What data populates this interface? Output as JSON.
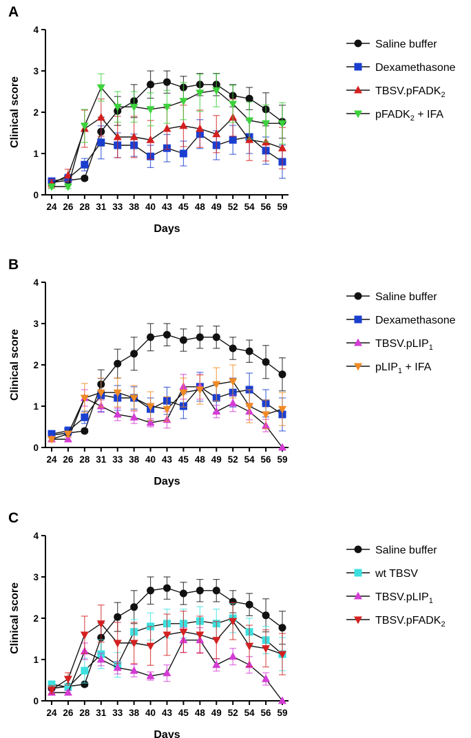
{
  "chart_data": [
    {
      "panel": "A",
      "type": "line",
      "xlabel": "Days",
      "ylabel": "Clinical score",
      "ylim": [
        0,
        4
      ],
      "yticks": [
        0,
        1,
        2,
        3,
        4
      ],
      "categories": [
        "24",
        "26",
        "28",
        "31",
        "33",
        "38",
        "40",
        "43",
        "45",
        "48",
        "49",
        "52",
        "54",
        "56",
        "59"
      ],
      "grid": false,
      "legend_position": "right",
      "series": [
        {
          "name": "Saline buffer",
          "sub": "",
          "suffix": "",
          "color": "#111111",
          "marker": "circle",
          "values": [
            0.3,
            0.35,
            0.4,
            1.53,
            2.03,
            2.27,
            2.67,
            2.73,
            2.6,
            2.67,
            2.67,
            2.4,
            2.33,
            2.07,
            1.77
          ],
          "errors": [
            0.05,
            0.05,
            0.05,
            0.35,
            0.35,
            0.4,
            0.33,
            0.27,
            0.27,
            0.27,
            0.27,
            0.27,
            0.27,
            0.4,
            0.4
          ]
        },
        {
          "name": "Dexamethasone",
          "sub": "",
          "suffix": "",
          "color": "#1a3fd0",
          "marker": "square",
          "values": [
            0.33,
            0.4,
            0.73,
            1.27,
            1.2,
            1.2,
            0.93,
            1.13,
            1.0,
            1.47,
            1.2,
            1.33,
            1.4,
            1.07,
            0.8
          ],
          "errors": [
            0.07,
            0.1,
            0.15,
            0.4,
            0.3,
            0.27,
            0.27,
            0.33,
            0.3,
            0.35,
            0.35,
            0.35,
            0.4,
            0.33,
            0.4
          ]
        },
        {
          "name": "TBSV.pFADK",
          "sub": "2",
          "suffix": "",
          "color": "#d42020",
          "marker": "triangle-up",
          "values": [
            0.27,
            0.47,
            1.6,
            1.87,
            1.4,
            1.4,
            1.33,
            1.6,
            1.67,
            1.6,
            1.47,
            1.87,
            1.33,
            1.27,
            1.13
          ],
          "errors": [
            0.1,
            0.15,
            0.45,
            0.45,
            0.5,
            0.5,
            0.47,
            0.5,
            0.5,
            0.45,
            0.45,
            0.45,
            0.5,
            0.45,
            0.5
          ]
        },
        {
          "name": "pFADK",
          "sub": "2",
          "suffix": " + IFA",
          "color": "#3cd23c",
          "marker": "triangle-down",
          "values": [
            0.2,
            0.2,
            1.67,
            2.6,
            2.13,
            2.13,
            2.07,
            2.13,
            2.27,
            2.47,
            2.53,
            2.2,
            1.8,
            1.73,
            1.73
          ],
          "errors": [
            0.05,
            0.05,
            0.4,
            0.33,
            0.37,
            0.37,
            0.4,
            0.4,
            0.45,
            0.45,
            0.4,
            0.45,
            0.45,
            0.45,
            0.5
          ]
        }
      ]
    },
    {
      "panel": "B",
      "type": "line",
      "xlabel": "Days",
      "ylabel": "Clinical score",
      "ylim": [
        0,
        4
      ],
      "yticks": [
        0,
        1,
        2,
        3,
        4
      ],
      "categories": [
        "24",
        "26",
        "28",
        "31",
        "33",
        "38",
        "40",
        "43",
        "45",
        "48",
        "49",
        "52",
        "54",
        "56",
        "59"
      ],
      "grid": false,
      "legend_position": "right",
      "series": [
        {
          "name": "Saline buffer",
          "sub": "",
          "suffix": "",
          "color": "#111111",
          "marker": "circle",
          "values": [
            0.3,
            0.35,
            0.4,
            1.53,
            2.03,
            2.27,
            2.67,
            2.73,
            2.6,
            2.67,
            2.67,
            2.4,
            2.33,
            2.07,
            1.77
          ],
          "errors": [
            0.05,
            0.05,
            0.05,
            0.35,
            0.35,
            0.4,
            0.33,
            0.27,
            0.27,
            0.27,
            0.27,
            0.27,
            0.27,
            0.4,
            0.4
          ]
        },
        {
          "name": "Dexamethasone",
          "sub": "",
          "suffix": "",
          "color": "#1a3fd0",
          "marker": "square",
          "values": [
            0.33,
            0.4,
            0.73,
            1.27,
            1.2,
            1.2,
            0.93,
            1.13,
            1.0,
            1.47,
            1.2,
            1.33,
            1.4,
            1.07,
            0.8
          ],
          "errors": [
            0.07,
            0.1,
            0.15,
            0.4,
            0.3,
            0.27,
            0.27,
            0.33,
            0.3,
            0.35,
            0.35,
            0.35,
            0.4,
            0.33,
            0.4
          ]
        },
        {
          "name": "TBSV.pLIP",
          "sub": "1",
          "suffix": "",
          "color": "#d43cd4",
          "marker": "triangle-up",
          "values": [
            0.2,
            0.2,
            1.2,
            1.0,
            0.8,
            0.73,
            0.6,
            0.67,
            1.47,
            1.47,
            0.87,
            1.07,
            0.87,
            0.53,
            0.0
          ],
          "errors": [
            0.05,
            0.05,
            0.2,
            0.15,
            0.15,
            0.15,
            0.1,
            0.2,
            0.3,
            0.3,
            0.15,
            0.2,
            0.2,
            0.15,
            0.0
          ]
        },
        {
          "name": "pLIP",
          "sub": "1",
          "suffix": " + IFA",
          "color": "#f08a24",
          "marker": "triangle-down",
          "values": [
            0.2,
            0.33,
            1.2,
            1.33,
            1.33,
            1.2,
            1.0,
            0.93,
            1.33,
            1.4,
            1.53,
            1.6,
            1.0,
            0.8,
            0.93
          ],
          "errors": [
            0.05,
            0.07,
            0.35,
            0.35,
            0.35,
            0.3,
            0.35,
            0.3,
            0.35,
            0.35,
            0.4,
            0.4,
            0.4,
            0.35,
            0.4
          ]
        }
      ]
    },
    {
      "panel": "C",
      "type": "line",
      "xlabel": "Days",
      "ylabel": "Clinical score",
      "ylim": [
        0,
        4
      ],
      "yticks": [
        0,
        1,
        2,
        3,
        4
      ],
      "categories": [
        "24",
        "26",
        "28",
        "31",
        "33",
        "38",
        "40",
        "43",
        "45",
        "48",
        "49",
        "52",
        "54",
        "56",
        "59"
      ],
      "grid": false,
      "legend_position": "right",
      "series": [
        {
          "name": "Saline buffer",
          "sub": "",
          "suffix": "",
          "color": "#111111",
          "marker": "circle",
          "values": [
            0.3,
            0.35,
            0.4,
            1.53,
            2.03,
            2.27,
            2.67,
            2.73,
            2.6,
            2.67,
            2.67,
            2.4,
            2.33,
            2.07,
            1.77
          ],
          "errors": [
            0.05,
            0.05,
            0.05,
            0.35,
            0.35,
            0.4,
            0.33,
            0.27,
            0.27,
            0.27,
            0.27,
            0.27,
            0.27,
            0.4,
            0.4
          ]
        },
        {
          "name": "wt TBSV",
          "sub": "",
          "suffix": "",
          "color": "#3de0e0",
          "marker": "square",
          "values": [
            0.4,
            0.33,
            0.73,
            1.13,
            0.87,
            1.67,
            1.8,
            1.87,
            1.87,
            1.93,
            1.87,
            2.0,
            1.67,
            1.47,
            1.13
          ],
          "errors": [
            0.05,
            0.07,
            0.3,
            0.35,
            0.3,
            0.3,
            0.33,
            0.35,
            0.35,
            0.35,
            0.35,
            0.35,
            0.33,
            0.33,
            0.4
          ]
        },
        {
          "name": "TBSV.pLIP",
          "sub": "1",
          "suffix": "",
          "color": "#d43cd4",
          "marker": "triangle-up",
          "values": [
            0.2,
            0.2,
            1.2,
            1.0,
            0.8,
            0.73,
            0.6,
            0.67,
            1.47,
            1.47,
            0.87,
            1.07,
            0.87,
            0.53,
            0.0
          ],
          "errors": [
            0.05,
            0.05,
            0.2,
            0.15,
            0.15,
            0.15,
            0.1,
            0.2,
            0.3,
            0.3,
            0.15,
            0.2,
            0.2,
            0.15,
            0.0
          ]
        },
        {
          "name": "TBSV.pFADK",
          "sub": "2",
          "suffix": "",
          "color": "#d42020",
          "marker": "triangle-down",
          "values": [
            0.27,
            0.53,
            1.6,
            1.87,
            1.4,
            1.4,
            1.33,
            1.6,
            1.67,
            1.6,
            1.47,
            1.93,
            1.33,
            1.27,
            1.13
          ],
          "errors": [
            0.1,
            0.15,
            0.45,
            0.45,
            0.5,
            0.5,
            0.47,
            0.5,
            0.5,
            0.45,
            0.45,
            0.45,
            0.5,
            0.45,
            0.5
          ]
        }
      ]
    }
  ]
}
